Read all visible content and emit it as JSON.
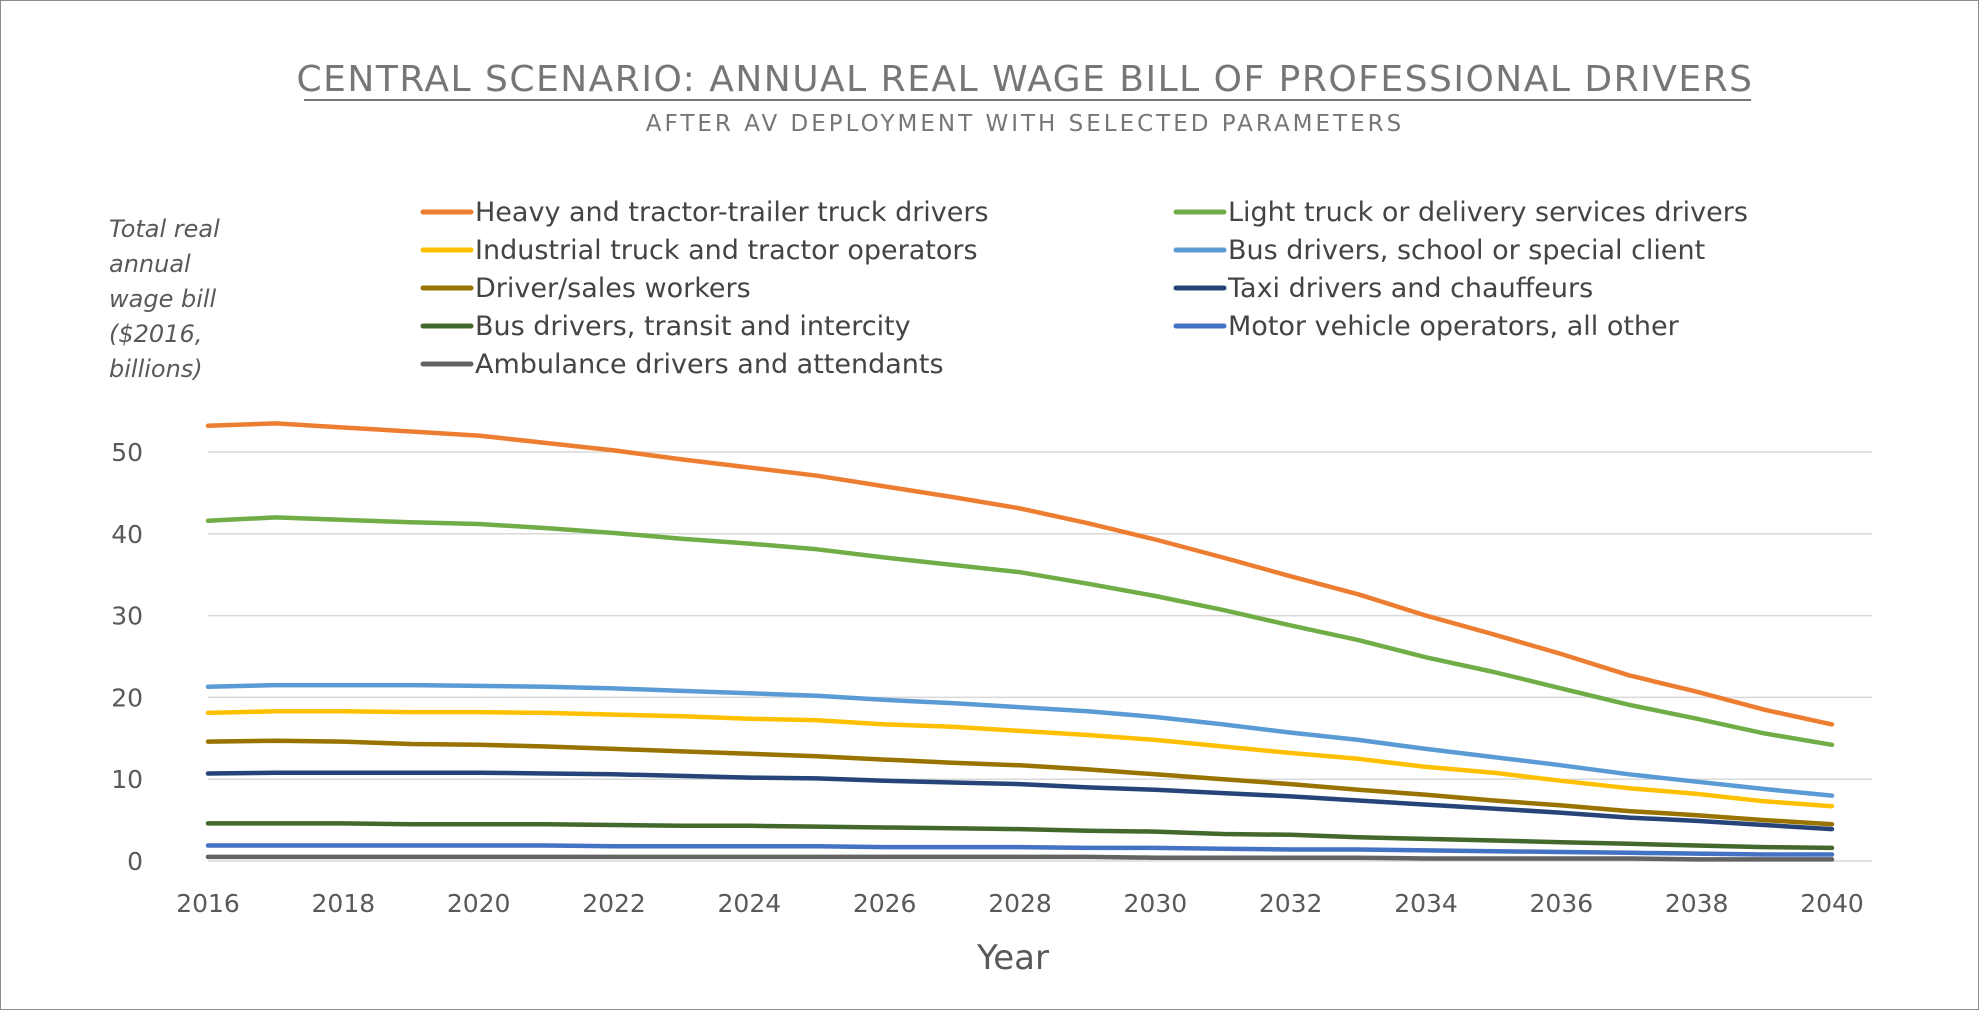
{
  "chart_data": {
    "type": "line",
    "title": "CENTRAL SCENARIO: ANNUAL REAL WAGE BILL OF PROFESSIONAL DRIVERS",
    "subtitle": "AFTER AV DEPLOYMENT WITH SELECTED PARAMETERS",
    "xlabel": "Year",
    "ylabel_lines": [
      "Total real",
      "annual",
      "wage bill",
      "($2016,",
      "billions)"
    ],
    "x": [
      2016,
      2017,
      2018,
      2019,
      2020,
      2021,
      2022,
      2023,
      2024,
      2025,
      2026,
      2027,
      2028,
      2029,
      2030,
      2031,
      2032,
      2033,
      2034,
      2035,
      2036,
      2037,
      2038,
      2039,
      2040
    ],
    "xticks": [
      2016,
      2018,
      2020,
      2022,
      2024,
      2026,
      2028,
      2030,
      2032,
      2034,
      2036,
      2038,
      2040
    ],
    "yticks": [
      0,
      10,
      20,
      30,
      40,
      50
    ],
    "xlim": [
      2016,
      2040
    ],
    "ylim": [
      0,
      50
    ],
    "grid": "horizontal",
    "legend_position": "top",
    "series": [
      {
        "name": "Heavy and tractor-trailer truck drivers",
        "color": "#ed7d31",
        "values": [
          53.2,
          53.5,
          53.0,
          52.5,
          52.0,
          51.1,
          50.2,
          49.1,
          48.1,
          47.1,
          45.8,
          44.5,
          43.1,
          41.3,
          39.3,
          37.1,
          34.8,
          32.6,
          30.0,
          27.7,
          25.3,
          22.7,
          20.7,
          18.5,
          16.7
        ]
      },
      {
        "name": "Light truck or delivery services drivers",
        "color": "#70ad47",
        "values": [
          41.6,
          42.0,
          41.7,
          41.4,
          41.2,
          40.7,
          40.1,
          39.4,
          38.8,
          38.1,
          37.1,
          36.2,
          35.3,
          33.9,
          32.4,
          30.7,
          28.8,
          27.0,
          24.9,
          23.1,
          21.1,
          19.1,
          17.4,
          15.6,
          14.2
        ]
      },
      {
        "name": "Industrial truck and tractor operators",
        "color": "#ffc000",
        "values": [
          18.1,
          18.3,
          18.3,
          18.2,
          18.2,
          18.1,
          17.9,
          17.7,
          17.4,
          17.2,
          16.7,
          16.4,
          15.9,
          15.4,
          14.8,
          14.0,
          13.2,
          12.5,
          11.5,
          10.8,
          9.8,
          8.9,
          8.2,
          7.3,
          6.7
        ]
      },
      {
        "name": "Bus drivers, school or special client",
        "color": "#5b9bd5",
        "values": [
          21.3,
          21.5,
          21.5,
          21.5,
          21.4,
          21.3,
          21.1,
          20.8,
          20.5,
          20.2,
          19.7,
          19.3,
          18.8,
          18.3,
          17.6,
          16.7,
          15.7,
          14.8,
          13.7,
          12.7,
          11.7,
          10.6,
          9.7,
          8.8,
          8.0
        ]
      },
      {
        "name": "Driver/sales workers",
        "color": "#997300",
        "values": [
          14.6,
          14.7,
          14.6,
          14.3,
          14.2,
          14.0,
          13.7,
          13.4,
          13.1,
          12.8,
          12.4,
          12.0,
          11.7,
          11.2,
          10.6,
          10.0,
          9.4,
          8.7,
          8.1,
          7.4,
          6.8,
          6.1,
          5.6,
          5.0,
          4.5
        ]
      },
      {
        "name": "Taxi drivers and chauffeurs",
        "color": "#264478",
        "values": [
          10.7,
          10.8,
          10.8,
          10.8,
          10.8,
          10.7,
          10.6,
          10.4,
          10.2,
          10.1,
          9.8,
          9.6,
          9.4,
          9.0,
          8.7,
          8.3,
          7.9,
          7.4,
          6.9,
          6.4,
          5.9,
          5.3,
          4.9,
          4.4,
          3.9
        ]
      },
      {
        "name": "Bus drivers, transit and intercity",
        "color": "#43682b",
        "values": [
          4.6,
          4.6,
          4.6,
          4.5,
          4.5,
          4.5,
          4.4,
          4.3,
          4.3,
          4.2,
          4.1,
          4.0,
          3.9,
          3.7,
          3.6,
          3.3,
          3.2,
          2.9,
          2.7,
          2.5,
          2.3,
          2.1,
          1.9,
          1.7,
          1.6
        ]
      },
      {
        "name": "Motor vehicle operators, all other",
        "color": "#4472c4",
        "values": [
          1.9,
          1.9,
          1.9,
          1.9,
          1.9,
          1.9,
          1.8,
          1.8,
          1.8,
          1.8,
          1.7,
          1.7,
          1.7,
          1.6,
          1.6,
          1.5,
          1.4,
          1.4,
          1.3,
          1.2,
          1.1,
          1.0,
          0.9,
          0.8,
          0.8
        ]
      },
      {
        "name": "Ambulance drivers and attendants",
        "color": "#636363",
        "values": [
          0.5,
          0.5,
          0.5,
          0.5,
          0.5,
          0.5,
          0.5,
          0.5,
          0.5,
          0.5,
          0.5,
          0.5,
          0.5,
          0.5,
          0.4,
          0.4,
          0.4,
          0.4,
          0.3,
          0.3,
          0.3,
          0.3,
          0.2,
          0.2,
          0.2
        ]
      }
    ]
  }
}
